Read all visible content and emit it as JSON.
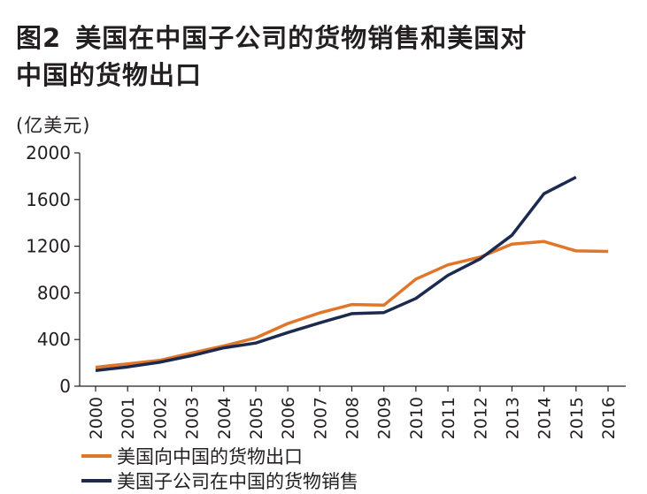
{
  "chart_data": {
    "type": "line",
    "title_label": "图2",
    "title_line1": "美国在中国子公司的货物销售和美国对",
    "title_line2": "中国的货物出口",
    "unit": "(亿美元)",
    "x": [
      "2000",
      "2001",
      "2002",
      "2003",
      "2004",
      "2005",
      "2006",
      "2007",
      "2008",
      "2009",
      "2010",
      "2011",
      "2012",
      "2013",
      "2014",
      "2015",
      "2016"
    ],
    "ylim": [
      0,
      2000
    ],
    "yticks": [
      0,
      400,
      800,
      1200,
      1600,
      2000
    ],
    "series": [
      {
        "name": "美国向中国的货物出口",
        "color": "#e0762a",
        "values": [
          162,
          192,
          221,
          284,
          345,
          414,
          537,
          629,
          700,
          695,
          918,
          1040,
          1106,
          1218,
          1240,
          1160,
          1155
        ]
      },
      {
        "name": "美国子公司在中国的货物销售",
        "color": "#1d2a4f",
        "values": [
          135,
          165,
          205,
          262,
          329,
          370,
          460,
          543,
          622,
          631,
          752,
          951,
          1090,
          1294,
          1650,
          1792,
          null
        ]
      }
    ]
  }
}
